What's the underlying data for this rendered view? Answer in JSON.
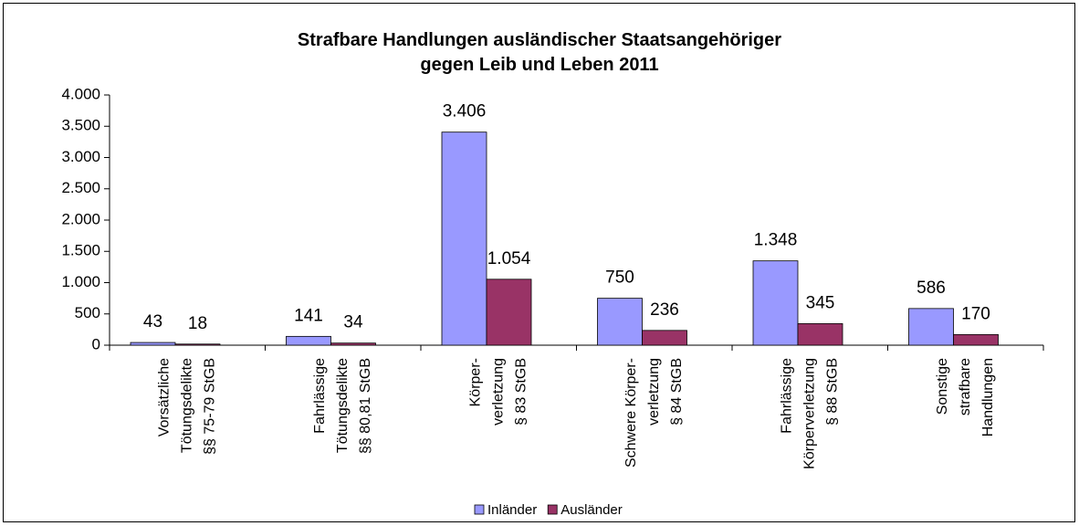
{
  "chart_data": {
    "type": "bar",
    "title": "Strafbare Handlungen ausländischer Staatsangehöriger\ngegen Leib und Leben 2011",
    "categories": [
      "Vorsätzliche\nTötungsdelikte\n§§ 75-79 StGB",
      "Fahrlässige\nTötungsdelikte\n§§ 80,81 StGB",
      "Körper-\nverletzung\n§ 83 StGB",
      "Schwere Körper-\nverletzung\n§ 84 StGB",
      "Fahrlässige\nKörperverletzung\n§ 88 StGB",
      "Sonstige\nstrafbare\nHandlungen"
    ],
    "series": [
      {
        "name": "Inländer",
        "color": "#9999ff",
        "values": [
          43,
          141,
          3406,
          750,
          1348,
          586
        ],
        "value_labels": [
          "43",
          "141",
          "3.406",
          "750",
          "1.348",
          "586"
        ]
      },
      {
        "name": "Ausländer",
        "color": "#993366",
        "values": [
          18,
          34,
          1054,
          236,
          345,
          170
        ],
        "value_labels": [
          "18",
          "34",
          "1.054",
          "236",
          "345",
          "170"
        ]
      }
    ],
    "ylim": [
      0,
      4000
    ],
    "yticks": [
      0,
      500,
      {
        "value": 1000,
        "label": "1.000"
      },
      {
        "value": 1500,
        "label": "1.500"
      },
      {
        "value": 2000,
        "label": "2.000"
      },
      {
        "value": 2500,
        "label": "2.500"
      },
      {
        "value": 3000,
        "label": "3.000"
      },
      {
        "value": 3500,
        "label": "3.500"
      },
      {
        "value": 4000,
        "label": "4.000"
      }
    ],
    "grid": false,
    "legend": "bottom"
  }
}
